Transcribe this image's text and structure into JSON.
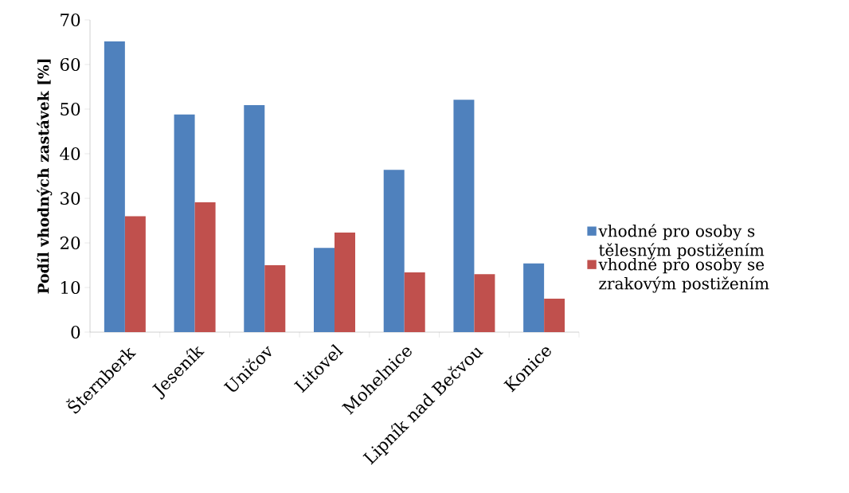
{
  "chart_data": {
    "type": "bar",
    "ylabel": "Podíl vhodných zastávek [%]",
    "categories": [
      "Šternberk",
      "Jeseník",
      "Uničov",
      "Litovel",
      "Mohelnice",
      "Lipník nad Bečvou",
      "Konice"
    ],
    "series": [
      {
        "name": "vhodné pro osoby s tělesným postižením",
        "color": "#4f81bd",
        "values": [
          65.2,
          48.8,
          50.9,
          18.9,
          36.4,
          52.1,
          15.4
        ]
      },
      {
        "name": "vhodné pro osoby se zrakovým postižením",
        "color": "#c0504d",
        "values": [
          26.0,
          29.1,
          15.0,
          22.3,
          13.4,
          13.0,
          7.5
        ]
      }
    ],
    "ylim": [
      0,
      70
    ],
    "yticks": [
      0,
      10,
      20,
      30,
      40,
      50,
      60,
      70
    ],
    "legend": "right",
    "grid": false
  }
}
